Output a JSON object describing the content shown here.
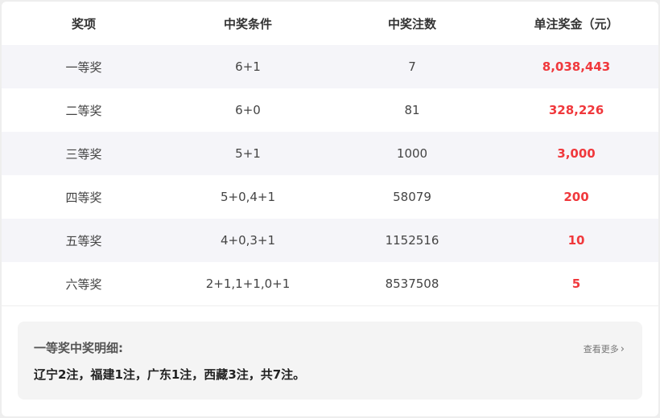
{
  "table": {
    "headers": [
      "奖项",
      "中奖条件",
      "中奖注数",
      "单注奖金（元）"
    ],
    "rows": [
      {
        "level": "一等奖",
        "condition": "6+1",
        "count": "7",
        "prize": "8,038,443"
      },
      {
        "level": "二等奖",
        "condition": "6+0",
        "count": "81",
        "prize": "328,226"
      },
      {
        "level": "三等奖",
        "condition": "5+1",
        "count": "1000",
        "prize": "3,000"
      },
      {
        "level": "四等奖",
        "condition": "5+0,4+1",
        "count": "58079",
        "prize": "200"
      },
      {
        "level": "五等奖",
        "condition": "4+0,3+1",
        "count": "1152516",
        "prize": "10"
      },
      {
        "level": "六等奖",
        "condition": "2+1,1+1,0+1",
        "count": "8537508",
        "prize": "5"
      }
    ]
  },
  "detail": {
    "title": "一等奖中奖明细:",
    "text": "辽宁2注，福建1注，广东1注，西藏3注，共7注。",
    "more_label": "查看更多",
    "more_icon": "chevron-right-icon"
  },
  "colors": {
    "prize": "#f0383c",
    "alt_row": "#f5f5f9"
  }
}
